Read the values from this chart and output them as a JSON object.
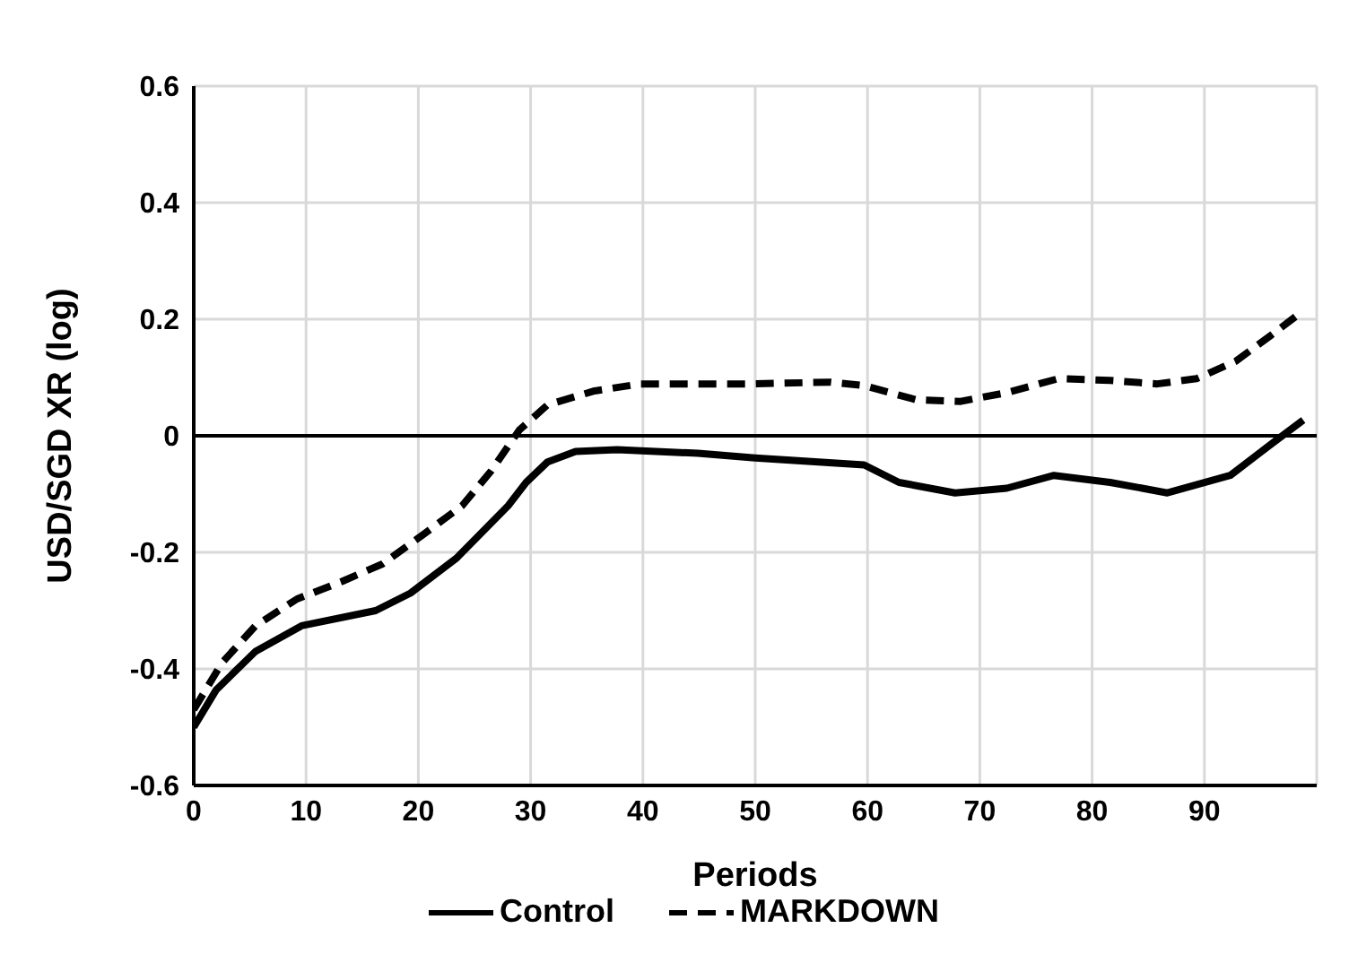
{
  "chart_data": {
    "type": "line",
    "xlabel": "Periods",
    "ylabel": "USD/SGD XR (log)",
    "xlim": [
      0,
      100
    ],
    "xticks": [
      0,
      10,
      20,
      30,
      40,
      50,
      60,
      70,
      80,
      90,
      {
        "value": 100,
        "label": null
      }
    ],
    "ylim": [
      -0.6,
      0.6
    ],
    "yticks": [
      -0.6,
      -0.4,
      -0.2,
      0,
      0.2,
      0.4,
      0.6
    ],
    "grid": true,
    "legend": "bottom",
    "marker": "none",
    "ref_lines": [
      {
        "axis": "y",
        "value": 0,
        "color": "#000000"
      }
    ],
    "series": [
      {
        "name": "Control",
        "color": "#000000",
        "line_style": "solid",
        "x": [
          0,
          2,
          5.5,
          9.6,
          16.2,
          19.3,
          23.4,
          28,
          29.6,
          31.5,
          34,
          37.7,
          44.9,
          50,
          59.7,
          62.8,
          67.8,
          72.4,
          76.6,
          81.6,
          86.7,
          92.3,
          95.9,
          98.8
        ],
        "values": [
          -0.5,
          -0.436,
          -0.37,
          -0.326,
          -0.3,
          -0.27,
          -0.21,
          -0.12,
          -0.08,
          -0.045,
          -0.027,
          -0.024,
          -0.03,
          -0.038,
          -0.05,
          -0.08,
          -0.098,
          -0.09,
          -0.068,
          -0.08,
          -0.098,
          -0.068,
          -0.015,
          0.027
        ]
      },
      {
        "name": "MARKDOWN",
        "color": "#000000",
        "line_style": "dashed",
        "x": [
          0,
          2.5,
          5.5,
          9.2,
          13.2,
          16.8,
          20.4,
          23.9,
          26.5,
          29,
          31.5,
          35.7,
          39.8,
          49.5,
          56.7,
          59.7,
          64.3,
          68.3,
          72.4,
          77,
          81.6,
          85.8,
          89.3,
          92.8,
          95.9,
          98.5
        ],
        "values": [
          -0.47,
          -0.39,
          -0.326,
          -0.28,
          -0.25,
          -0.22,
          -0.17,
          -0.12,
          -0.06,
          0.01,
          0.053,
          0.077,
          0.089,
          0.089,
          0.092,
          0.086,
          0.062,
          0.059,
          0.074,
          0.098,
          0.095,
          0.089,
          0.098,
          0.128,
          0.172,
          0.21
        ]
      }
    ]
  }
}
